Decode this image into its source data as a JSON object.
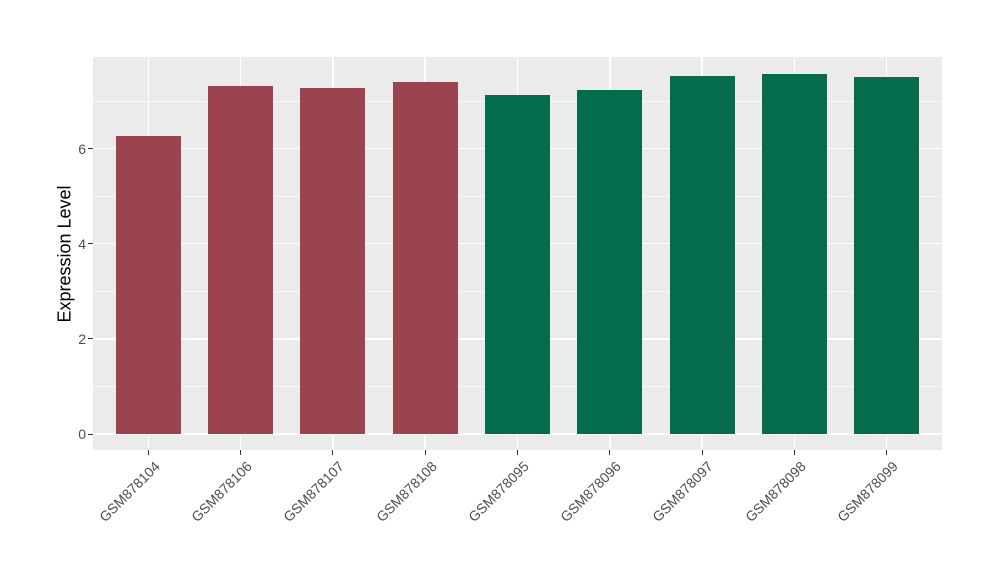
{
  "figure": {
    "background_color": "#FFFFFF",
    "panel_background_color": "#EBEBEB",
    "gridline_color": "#FFFFFF",
    "tick_mark_color": "#333333",
    "axis_text_color": "#4D4D4D",
    "axis_title_color": "#000000"
  },
  "chart_data": {
    "type": "bar",
    "title": "",
    "xlabel": "",
    "ylabel": "Expression Level",
    "categories": [
      "GSM878104",
      "GSM878106",
      "GSM878107",
      "GSM878108",
      "GSM878095",
      "GSM878096",
      "GSM878097",
      "GSM878098",
      "GSM878099"
    ],
    "values": [
      6.27,
      7.31,
      7.27,
      7.39,
      7.13,
      7.23,
      7.53,
      7.56,
      7.51
    ],
    "bar_colors": [
      "#9B4450",
      "#9B4450",
      "#9B4450",
      "#9B4450",
      "#046B4C",
      "#046B4C",
      "#046B4C",
      "#046B4C",
      "#046B4C"
    ],
    "group_colors": {
      "left_group": "#9B4450",
      "right_group": "#046B4C"
    },
    "y_axis": {
      "ticks": [
        0,
        2,
        4,
        6
      ],
      "tick_labels": [
        "0",
        "2",
        "4",
        "6"
      ],
      "minor_ticks": [
        1,
        3,
        5,
        7
      ],
      "lim": [
        -0.35,
        7.93
      ]
    },
    "x_tick_rotation_deg": 45,
    "legend": "none",
    "grid": true
  }
}
